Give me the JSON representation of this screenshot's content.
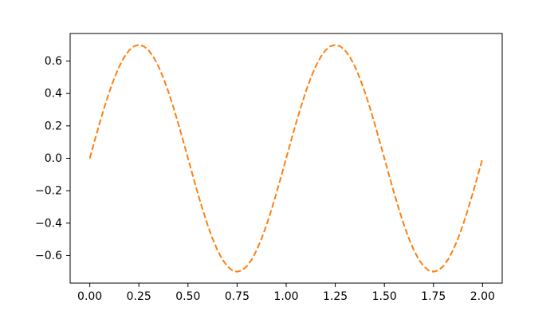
{
  "figure": {
    "background": "#ffffff"
  },
  "chart_data": {
    "type": "line",
    "title": "",
    "xlabel": "",
    "ylabel": "",
    "grid": false,
    "legend": null,
    "xlim": [
      -0.1,
      2.1
    ],
    "ylim": [
      -0.77,
      0.77
    ],
    "xtick_values": [
      0.0,
      0.25,
      0.5,
      0.75,
      1.0,
      1.25,
      1.5,
      1.75,
      2.0
    ],
    "xtick_labels": [
      "0.00",
      "0.25",
      "0.50",
      "0.75",
      "1.00",
      "1.25",
      "1.50",
      "1.75",
      "2.00"
    ],
    "ytick_values": [
      -0.6,
      -0.4,
      -0.2,
      0.0,
      0.2,
      0.4,
      0.6
    ],
    "ytick_labels": [
      "−0.6",
      "−0.4",
      "−0.2",
      "0.0",
      "0.2",
      "0.4",
      "0.6"
    ],
    "axes_color": "#000000",
    "series": [
      {
        "color": "#ff7f0e",
        "linestyle": "dashed",
        "linewidth": 2,
        "x": [
          0,
          0.025,
          0.05,
          0.075,
          0.1,
          0.125,
          0.15,
          0.175,
          0.2,
          0.225,
          0.25,
          0.275,
          0.3,
          0.325,
          0.35,
          0.375,
          0.4,
          0.425,
          0.45,
          0.475,
          0.5,
          0.525,
          0.55,
          0.575,
          0.6,
          0.625,
          0.65,
          0.675,
          0.7,
          0.725,
          0.75,
          0.775,
          0.8,
          0.825,
          0.85,
          0.875,
          0.9,
          0.925,
          0.95,
          0.975,
          1.0,
          1.025,
          1.05,
          1.075,
          1.1,
          1.125,
          1.15,
          1.175,
          1.2,
          1.225,
          1.25,
          1.275,
          1.3,
          1.325,
          1.35,
          1.375,
          1.4,
          1.425,
          1.45,
          1.475,
          1.5,
          1.525,
          1.55,
          1.575,
          1.6,
          1.625,
          1.65,
          1.675,
          1.7,
          1.725,
          1.75,
          1.775,
          1.8,
          1.825,
          1.85,
          1.875,
          1.9,
          1.925,
          1.95,
          1.975,
          2.0
        ],
        "y": [
          0,
          0.1095,
          0.2163,
          0.3178,
          0.4114,
          0.495,
          0.5663,
          0.6237,
          0.6657,
          0.6914,
          0.7,
          0.6914,
          0.6657,
          0.6237,
          0.5663,
          0.495,
          0.4114,
          0.3178,
          0.2163,
          0.1095,
          0,
          -0.1095,
          -0.2163,
          -0.3178,
          -0.4114,
          -0.495,
          -0.5663,
          -0.6237,
          -0.6657,
          -0.6914,
          -0.7,
          -0.6914,
          -0.6657,
          -0.6237,
          -0.5663,
          -0.495,
          -0.4114,
          -0.3178,
          -0.2163,
          -0.1095,
          0,
          0.1095,
          0.2163,
          0.3178,
          0.4114,
          0.495,
          0.5663,
          0.6237,
          0.6657,
          0.6914,
          0.7,
          0.6914,
          0.6657,
          0.6237,
          0.5663,
          0.495,
          0.4114,
          0.3178,
          0.2163,
          0.1095,
          0,
          -0.1095,
          -0.2163,
          -0.3178,
          -0.4114,
          -0.495,
          -0.5663,
          -0.6237,
          -0.6657,
          -0.6914,
          -0.7,
          -0.6914,
          -0.6657,
          -0.6237,
          -0.5663,
          -0.495,
          -0.4114,
          -0.3178,
          -0.2163,
          -0.1095,
          0
        ]
      }
    ]
  }
}
